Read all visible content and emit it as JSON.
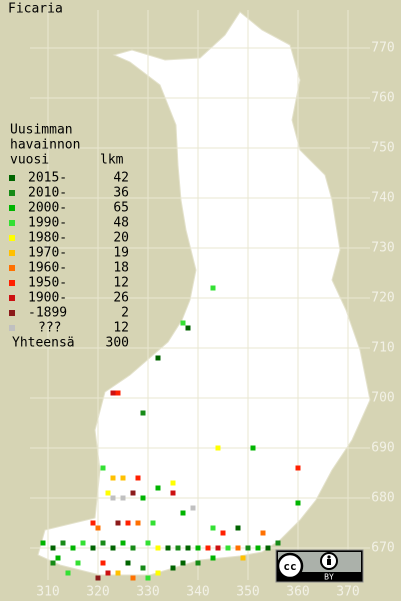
{
  "title": "Ficaria",
  "legend": {
    "heading": [
      "Uusimman",
      "havainnon",
      "vuosi"
    ],
    "count_heading": "lkm",
    "rows": [
      {
        "label": "2015-",
        "count": 42,
        "color": "#006400"
      },
      {
        "label": "2010-",
        "count": 36,
        "color": "#168a16"
      },
      {
        "label": "2000-",
        "count": 65,
        "color": "#00b400"
      },
      {
        "label": "1990-",
        "count": 48,
        "color": "#33e033"
      },
      {
        "label": "1980-",
        "count": 20,
        "color": "#ffff00"
      },
      {
        "label": "1970-",
        "count": 19,
        "color": "#ffc000"
      },
      {
        "label": "1960-",
        "count": 18,
        "color": "#ff7000"
      },
      {
        "label": "1950-",
        "count": 12,
        "color": "#ff2000"
      },
      {
        "label": "1900-",
        "count": 26,
        "color": "#cc1010"
      },
      {
        "label": "-1899",
        "count": 2,
        "color": "#8b1a1a"
      },
      {
        "label": "???",
        "count": 12,
        "color": "#c0c0c0"
      }
    ],
    "total_label": "Yhteensä",
    "total": 300
  },
  "xticks": [
    310,
    320,
    330,
    340,
    350,
    360,
    370
  ],
  "yticks": [
    670,
    680,
    690,
    700,
    710,
    720,
    730,
    740,
    750,
    760,
    770
  ],
  "points": [
    [
      343,
      722,
      3
    ],
    [
      337,
      715,
      3
    ],
    [
      338,
      714,
      0
    ],
    [
      332,
      708,
      0
    ],
    [
      324,
      701,
      7
    ],
    [
      323,
      701,
      8
    ],
    [
      329,
      697,
      1
    ],
    [
      321,
      686,
      3
    ],
    [
      344,
      690,
      4
    ],
    [
      351,
      690,
      2
    ],
    [
      360,
      686,
      7
    ],
    [
      360,
      679,
      2
    ],
    [
      323,
      684,
      5
    ],
    [
      325,
      684,
      5
    ],
    [
      328,
      684,
      7
    ],
    [
      332,
      682,
      2
    ],
    [
      335,
      683,
      4
    ],
    [
      322,
      681,
      4
    ],
    [
      323,
      680,
      10
    ],
    [
      325,
      680,
      10
    ],
    [
      327,
      681,
      9
    ],
    [
      335,
      681,
      8
    ],
    [
      329,
      680,
      2
    ],
    [
      339,
      678,
      10
    ],
    [
      337,
      677,
      2
    ],
    [
      324,
      675,
      9
    ],
    [
      326,
      675,
      7
    ],
    [
      328,
      675,
      6
    ],
    [
      319,
      675,
      7
    ],
    [
      320,
      674,
      6
    ],
    [
      331,
      675,
      3
    ],
    [
      343,
      674,
      3
    ],
    [
      345,
      673,
      7
    ],
    [
      348,
      674,
      0
    ],
    [
      353,
      673,
      6
    ],
    [
      309,
      671,
      2
    ],
    [
      311,
      670,
      0
    ],
    [
      313,
      671,
      1
    ],
    [
      315,
      670,
      2
    ],
    [
      317,
      671,
      3
    ],
    [
      319,
      670,
      0
    ],
    [
      321,
      671,
      1
    ],
    [
      323,
      670,
      0
    ],
    [
      325,
      671,
      2
    ],
    [
      327,
      670,
      1
    ],
    [
      330,
      671,
      3
    ],
    [
      332,
      670,
      4
    ],
    [
      334,
      670,
      0
    ],
    [
      336,
      670,
      1
    ],
    [
      338,
      670,
      0
    ],
    [
      340,
      670,
      2
    ],
    [
      342,
      670,
      7
    ],
    [
      344,
      670,
      8
    ],
    [
      346,
      670,
      3
    ],
    [
      348,
      670,
      6
    ],
    [
      350,
      670,
      1
    ],
    [
      352,
      670,
      2
    ],
    [
      312,
      668,
      2
    ],
    [
      316,
      667,
      3
    ],
    [
      321,
      667,
      7
    ],
    [
      322,
      665,
      8
    ],
    [
      326,
      667,
      0
    ],
    [
      329,
      666,
      1
    ],
    [
      332,
      665,
      4
    ],
    [
      330,
      664,
      3
    ],
    [
      335,
      666,
      0
    ],
    [
      337,
      667,
      0
    ],
    [
      340,
      667,
      1
    ],
    [
      343,
      668,
      2
    ],
    [
      311,
      667,
      1
    ],
    [
      314,
      665,
      3
    ],
    [
      320,
      664,
      9
    ],
    [
      324,
      665,
      5
    ],
    [
      327,
      664,
      6
    ],
    [
      349,
      668,
      5
    ],
    [
      354,
      670,
      0
    ],
    [
      356,
      671,
      1
    ]
  ],
  "license": {
    "mark": "cc",
    "badge": "BY"
  }
}
